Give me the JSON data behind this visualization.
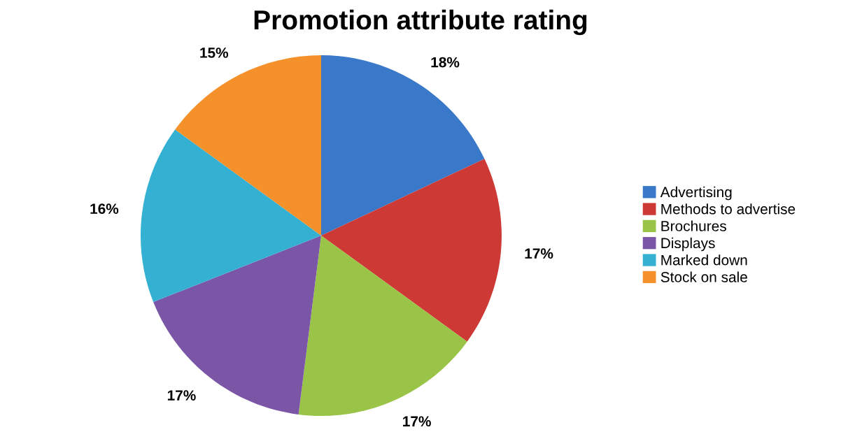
{
  "chart_data": {
    "type": "pie",
    "title": "Promotion attribute rating",
    "categories": [
      "Advertising",
      "Methods to advertise",
      "Brochures",
      "Displays",
      "Marked down",
      "Stock on sale"
    ],
    "values": [
      18,
      17,
      17,
      17,
      16,
      15
    ],
    "value_labels": [
      "18%",
      "17%",
      "17%",
      "17%",
      "16%",
      "15%"
    ],
    "colors": [
      "#3a78c9",
      "#cd3a35",
      "#9ac447",
      "#7b56a6",
      "#33b0d2",
      "#f5912b"
    ],
    "legend": "right"
  }
}
